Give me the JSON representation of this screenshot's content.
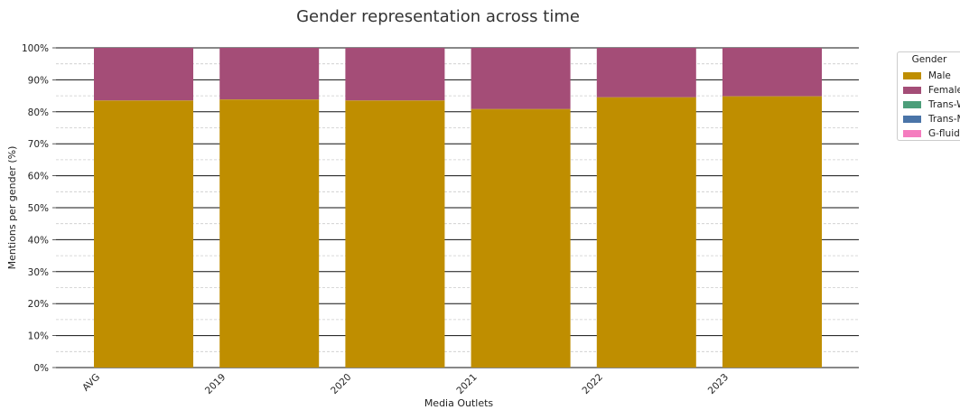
{
  "chart_data": {
    "type": "bar",
    "stacked": true,
    "title": "Gender representation across time",
    "xlabel": "Media Outlets",
    "ylabel": "Mentions per gender (%)",
    "categories": [
      "AVG",
      "2019",
      "2020",
      "2021",
      "2022",
      "2023"
    ],
    "ylim": [
      0,
      100
    ],
    "yticks": [
      "0%",
      "10%",
      "20%",
      "30%",
      "40%",
      "50%",
      "60%",
      "70%",
      "80%",
      "90%",
      "100%"
    ],
    "series": [
      {
        "name": "Male",
        "color": "#bf8e00",
        "values": [
          83.5,
          83.8,
          83.5,
          80.8,
          84.5,
          84.8
        ]
      },
      {
        "name": "Female",
        "color": "#a44d77",
        "values": [
          16.5,
          16.2,
          16.5,
          19.2,
          15.5,
          15.2
        ]
      },
      {
        "name": "Trans-W",
        "color": "#4c9e7a",
        "values": [
          0,
          0,
          0,
          0,
          0,
          0
        ]
      },
      {
        "name": "Trans-M",
        "color": "#4a74a8",
        "values": [
          0,
          0,
          0,
          0,
          0,
          0
        ]
      },
      {
        "name": "G-fluid",
        "color": "#f57cbf",
        "values": [
          0,
          0,
          0,
          0,
          0,
          0
        ]
      }
    ],
    "legend": {
      "title": "Gender",
      "position": "outside-right"
    },
    "grid": {
      "major": true,
      "minor": true
    }
  }
}
